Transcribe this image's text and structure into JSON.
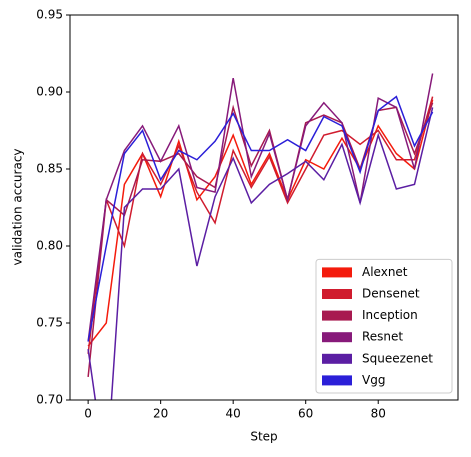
{
  "chart_data": {
    "type": "line",
    "x": [
      0,
      5,
      10,
      15,
      20,
      25,
      30,
      35,
      40,
      45,
      50,
      55,
      60,
      65,
      70,
      75,
      80,
      85,
      90,
      95
    ],
    "series": [
      {
        "name": "Alexnet",
        "color": "#f41b0c",
        "values": [
          0.735,
          0.75,
          0.84,
          0.86,
          0.832,
          0.868,
          0.83,
          0.845,
          0.872,
          0.84,
          0.86,
          0.83,
          0.856,
          0.85,
          0.87,
          0.85,
          0.878,
          0.86,
          0.85,
          0.895
        ]
      },
      {
        "name": "Densenet",
        "color": "#d01c2e",
        "values": [
          0.73,
          0.83,
          0.8,
          0.86,
          0.84,
          0.865,
          0.835,
          0.815,
          0.862,
          0.838,
          0.858,
          0.828,
          0.85,
          0.872,
          0.875,
          0.866,
          0.875,
          0.856,
          0.856,
          0.897
        ]
      },
      {
        "name": "Inception",
        "color": "#a81a50",
        "values": [
          0.715,
          0.83,
          0.82,
          0.856,
          0.855,
          0.86,
          0.845,
          0.838,
          0.89,
          0.852,
          0.875,
          0.83,
          0.88,
          0.885,
          0.88,
          0.85,
          0.888,
          0.89,
          0.86,
          0.893
        ]
      },
      {
        "name": "Resnet",
        "color": "#871a7a",
        "values": [
          0.738,
          0.83,
          0.862,
          0.878,
          0.855,
          0.878,
          0.838,
          0.835,
          0.909,
          0.845,
          0.873,
          0.83,
          0.878,
          0.893,
          0.88,
          0.828,
          0.896,
          0.89,
          0.85,
          0.912
        ]
      },
      {
        "name": "Squeezenet",
        "color": "#5b1ea3",
        "values": [
          0.733,
          0.65,
          0.825,
          0.837,
          0.837,
          0.85,
          0.787,
          0.832,
          0.857,
          0.828,
          0.84,
          0.847,
          0.855,
          0.843,
          0.866,
          0.828,
          0.872,
          0.837,
          0.84,
          0.89
        ]
      },
      {
        "name": "Vgg",
        "color": "#2b1fd8",
        "values": [
          0.738,
          0.8,
          0.86,
          0.875,
          0.843,
          0.862,
          0.856,
          0.868,
          0.886,
          0.862,
          0.862,
          0.869,
          0.862,
          0.884,
          0.878,
          0.848,
          0.888,
          0.897,
          0.865,
          0.887
        ]
      }
    ],
    "xlabel": "Step",
    "ylabel": "validation accuracy",
    "xlim": [
      -5,
      102
    ],
    "xticks": [
      0,
      20,
      40,
      60,
      80
    ],
    "ylim": [
      0.7,
      0.95
    ],
    "yticks": [
      {
        "value": 0.7,
        "label": "0.70"
      },
      {
        "value": 0.75,
        "label": "0.75"
      },
      {
        "value": 0.8,
        "label": "0.80"
      },
      {
        "value": 0.85,
        "label": "0.85"
      },
      {
        "value": 0.9,
        "label": "0.90"
      },
      {
        "value": 0.95,
        "label": "0.95"
      }
    ],
    "legend": "lower right",
    "grid": false
  }
}
